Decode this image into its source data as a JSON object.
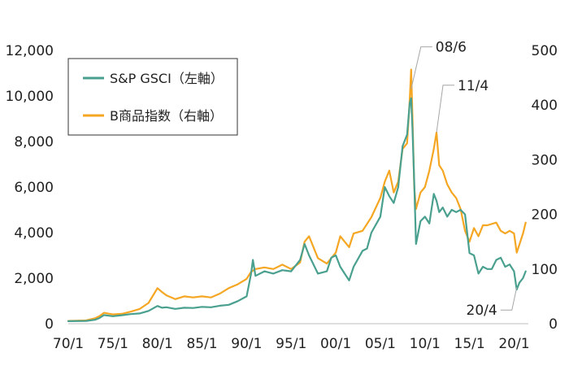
{
  "chart_data": {
    "type": "line",
    "title": "",
    "xlabel": "",
    "x_tick_labels": [
      "70/1",
      "75/1",
      "80/1",
      "85/1",
      "90/1",
      "95/1",
      "00/1",
      "05/1",
      "10/1",
      "15/1",
      "20/1"
    ],
    "x_ticks": [
      1970,
      1975,
      1980,
      1985,
      1990,
      1995,
      2000,
      2005,
      2010,
      2015,
      2020
    ],
    "xlim": [
      1970,
      2021.6
    ],
    "y_left": {
      "label": "S&P GSCI",
      "lim": [
        0,
        12000
      ],
      "ticks": [
        0,
        2000,
        4000,
        6000,
        8000,
        10000,
        12000
      ],
      "tick_labels": [
        "0",
        "2,000",
        "4,000",
        "6,000",
        "8,000",
        "10,000",
        "12,000"
      ]
    },
    "y_right": {
      "label": "B商品指数",
      "lim": [
        0,
        500
      ],
      "ticks": [
        0,
        100,
        200,
        300,
        400,
        500
      ],
      "tick_labels": [
        "0",
        "100",
        "200",
        "300",
        "400",
        "500"
      ]
    },
    "legend": {
      "position": "top-left",
      "entries": [
        {
          "name": "S&P  GSCI（左軸）",
          "color": "#4aa08f"
        },
        {
          "name": "B商品指数（右軸）",
          "color": "#f5a623"
        }
      ]
    },
    "annotations": [
      {
        "text": "08/6",
        "x": 2008.45,
        "axis": "left",
        "y": 10300
      },
      {
        "text": "11/4",
        "x": 2011.3,
        "axis": "right",
        "y": 350
      },
      {
        "text": "20/4",
        "x": 2020.3,
        "axis": "left",
        "y": 1600
      }
    ],
    "series": [
      {
        "name": "S&P  GSCI",
        "axis": "left",
        "color": "#4aa08f",
        "x": [
          1970,
          1972,
          1973,
          1973.5,
          1974,
          1975,
          1976,
          1977,
          1978,
          1979,
          1980,
          1980.5,
          1981,
          1982,
          1983,
          1984,
          1985,
          1986,
          1987,
          1988,
          1989,
          1990,
          1990.5,
          1990.7,
          1991,
          1992,
          1993,
          1994,
          1995,
          1996,
          1996.5,
          1997,
          1998,
          1999,
          1999.5,
          2000,
          2000.5,
          2001,
          2001.5,
          2002,
          2003,
          2003.5,
          2004,
          2005,
          2005.5,
          2006,
          2006.5,
          2007,
          2007.5,
          2008,
          2008.3,
          2008.45,
          2008.6,
          2008.8,
          2009,
          2009.5,
          2010,
          2010.5,
          2011,
          2011.3,
          2011.6,
          2012,
          2012.5,
          2013,
          2013.5,
          2014,
          2014.5,
          2015,
          2015.5,
          2016,
          2016.5,
          2017,
          2017.5,
          2018,
          2018.5,
          2019,
          2019.5,
          2020,
          2020.3,
          2020.6,
          2021,
          2021.3
        ],
        "values": [
          110,
          120,
          170,
          250,
          380,
          330,
          370,
          420,
          450,
          560,
          780,
          700,
          720,
          650,
          700,
          690,
          740,
          720,
          790,
          830,
          990,
          1200,
          2200,
          2800,
          2100,
          2300,
          2200,
          2350,
          2300,
          2800,
          3500,
          3000,
          2200,
          2300,
          2900,
          3000,
          2500,
          2200,
          1900,
          2500,
          3200,
          3300,
          4000,
          4700,
          6000,
          5600,
          5300,
          6000,
          7800,
          8300,
          9700,
          9900,
          8600,
          6200,
          3500,
          4500,
          4700,
          4400,
          5700,
          5400,
          4900,
          5100,
          4700,
          5000,
          4900,
          5000,
          4800,
          3100,
          3000,
          2200,
          2500,
          2400,
          2400,
          2800,
          2900,
          2500,
          2600,
          2300,
          1500,
          1800,
          2000,
          2300
        ]
      },
      {
        "name": "B商品指数",
        "axis": "right",
        "color": "#f5a623",
        "x": [
          1970,
          1972,
          1973,
          1973.5,
          1974,
          1975,
          1976,
          1977,
          1978,
          1979,
          1980,
          1980.5,
          1981,
          1982,
          1983,
          1984,
          1985,
          1986,
          1987,
          1988,
          1989,
          1990,
          1990.5,
          1991,
          1992,
          1993,
          1994,
          1995,
          1996,
          1996.5,
          1997,
          1998,
          1999,
          2000,
          2000.5,
          2001,
          2001.5,
          2002,
          2003,
          2004,
          2005,
          2005.5,
          2006,
          2006.5,
          2007,
          2007.5,
          2008,
          2008.3,
          2008.45,
          2008.6,
          2008.8,
          2009,
          2009.5,
          2010,
          2010.5,
          2011,
          2011.3,
          2011.6,
          2012,
          2012.5,
          2013,
          2013.5,
          2014,
          2014.5,
          2015,
          2015.5,
          2016,
          2016.5,
          2017,
          2018,
          2018.5,
          2019,
          2019.5,
          2020,
          2020.3,
          2020.6,
          2021,
          2021.3
        ],
        "values": [
          5,
          6,
          10,
          14,
          20,
          17,
          18,
          22,
          27,
          38,
          65,
          58,
          52,
          45,
          50,
          48,
          50,
          48,
          55,
          65,
          72,
          82,
          95,
          100,
          103,
          100,
          108,
          100,
          112,
          150,
          160,
          120,
          110,
          130,
          160,
          150,
          140,
          165,
          170,
          195,
          230,
          260,
          280,
          240,
          260,
          320,
          330,
          410,
          465,
          380,
          250,
          210,
          240,
          250,
          280,
          320,
          350,
          290,
          280,
          255,
          240,
          230,
          210,
          170,
          150,
          175,
          160,
          180,
          180,
          185,
          170,
          165,
          170,
          165,
          130,
          145,
          165,
          185
        ]
      }
    ]
  }
}
